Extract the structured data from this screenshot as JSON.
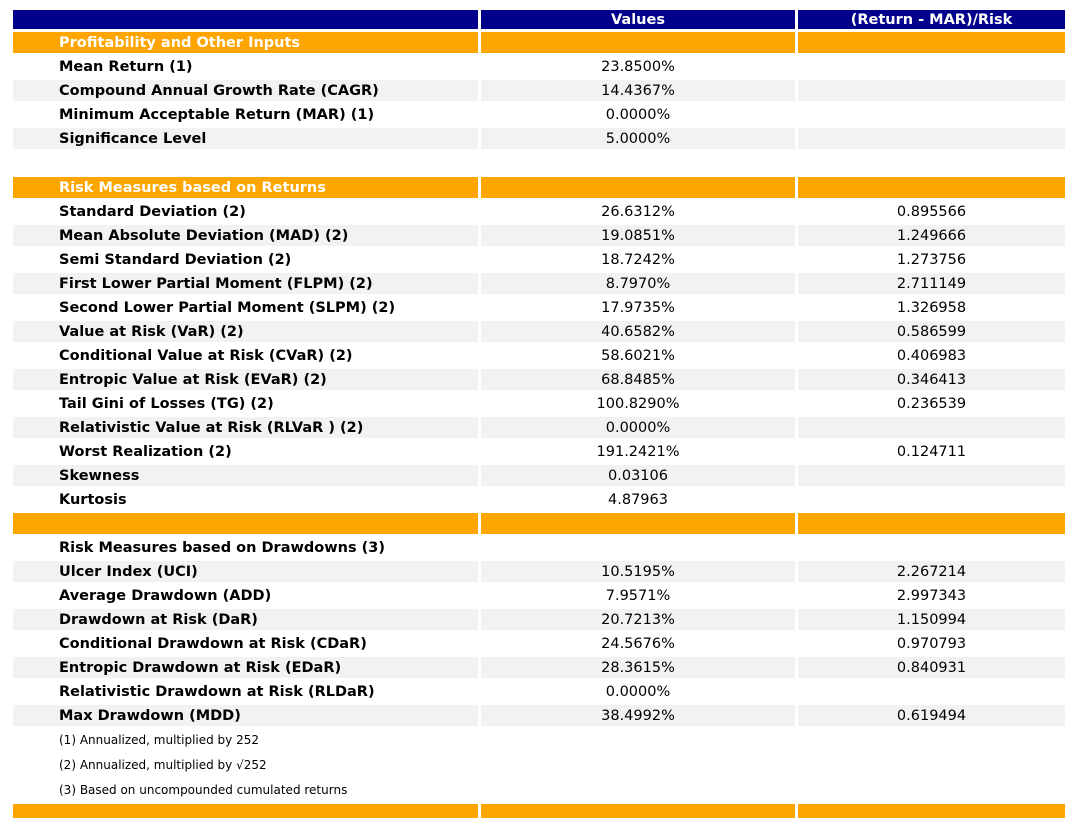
{
  "colors": {
    "header_bg": "#00008B",
    "header_text": "#ffffff",
    "section_bg": "#FFA500",
    "section_text": "#ffffff",
    "stripe_bg": "#f2f2f2",
    "row_bg": "#ffffff",
    "text": "#000000"
  },
  "chart_data": {
    "type": "table",
    "columns": [
      "",
      "Values",
      "(Return - MAR)/Risk"
    ],
    "sections": [
      {
        "header": "Profitability and Other Inputs",
        "gap_before": false,
        "rows": [
          {
            "label": "Mean Return (1)",
            "values": "23.8500%",
            "ratio": ""
          },
          {
            "label": "Compound Annual Growth Rate (CAGR)",
            "values": "14.4367%",
            "ratio": ""
          },
          {
            "label": "Minimum Acceptable Return (MAR) (1)",
            "values": "0.0000%",
            "ratio": ""
          },
          {
            "label": "Significance Level",
            "values": "5.0000%",
            "ratio": ""
          }
        ]
      },
      {
        "header": "Risk Measures based on Returns",
        "gap_before": true,
        "rows": [
          {
            "label": "Standard Deviation (2)",
            "values": "26.6312%",
            "ratio": "0.895566"
          },
          {
            "label": "Mean Absolute Deviation (MAD) (2)",
            "values": "19.0851%",
            "ratio": "1.249666"
          },
          {
            "label": "Semi Standard Deviation (2)",
            "values": "18.7242%",
            "ratio": "1.273756"
          },
          {
            "label": "First Lower Partial Moment (FLPM) (2)",
            "values": "8.7970%",
            "ratio": "2.711149"
          },
          {
            "label": "Second Lower Partial Moment (SLPM) (2)",
            "values": "17.9735%",
            "ratio": "1.326958"
          },
          {
            "label": "Value at Risk (VaR) (2)",
            "values": "40.6582%",
            "ratio": "0.586599"
          },
          {
            "label": "Conditional Value at Risk (CVaR) (2)",
            "values": "58.6021%",
            "ratio": "0.406983"
          },
          {
            "label": "Entropic Value at Risk (EVaR) (2)",
            "values": "68.8485%",
            "ratio": "0.346413"
          },
          {
            "label": "Tail Gini of Losses (TG) (2)",
            "values": "100.8290%",
            "ratio": "0.236539"
          },
          {
            "label": "Relativistic Value at Risk (RLVaR ) (2)",
            "values": "0.0000%",
            "ratio": ""
          },
          {
            "label": "Worst Realization (2)",
            "values": "191.2421%",
            "ratio": "0.124711"
          },
          {
            "label": "Skewness",
            "values": "0.03106",
            "ratio": ""
          },
          {
            "label": "Kurtosis",
            "values": "4.87963",
            "ratio": ""
          }
        ]
      },
      {
        "header": "",
        "gap_before": false,
        "subtitle_row": "Risk Measures based on Drawdowns (3)",
        "rows": [
          {
            "label": "Ulcer Index (UCI)",
            "values": "10.5195%",
            "ratio": "2.267214"
          },
          {
            "label": "Average Drawdown (ADD)",
            "values": "7.9571%",
            "ratio": "2.997343"
          },
          {
            "label": "Drawdown at Risk (DaR)",
            "values": "20.7213%",
            "ratio": "1.150994"
          },
          {
            "label": "Conditional Drawdown at Risk (CDaR)",
            "values": "24.5676%",
            "ratio": "0.970793"
          },
          {
            "label": "Entropic Drawdown at Risk (EDaR)",
            "values": "28.3615%",
            "ratio": "0.840931"
          },
          {
            "label": "Relativistic Drawdown at Risk (RLDaR)",
            "values": "0.0000%",
            "ratio": ""
          },
          {
            "label": "Max Drawdown (MDD)",
            "values": "38.4992%",
            "ratio": "0.619494"
          }
        ]
      }
    ],
    "footnotes": [
      "(1) Annualized, multiplied by 252",
      "(2) Annualized, multiplied by √252",
      "(3) Based on uncompounded cumulated returns"
    ]
  }
}
